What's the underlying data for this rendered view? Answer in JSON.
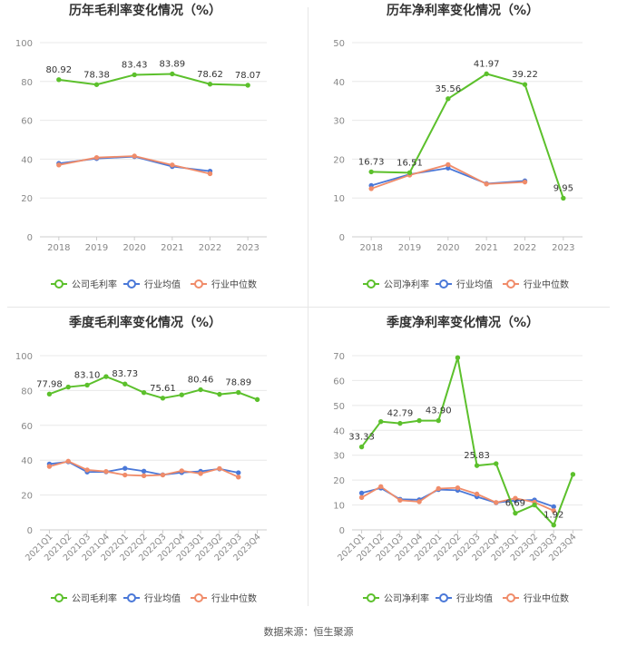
{
  "footer": {
    "source": "数据来源：恒生聚源"
  },
  "colors": {
    "company": "#5cc02c",
    "industry_avg": "#4a78d8",
    "industry_median": "#f08c6a",
    "axis_text": "#888888",
    "grid": "#e8e8e8",
    "title": "#333333"
  },
  "chart_data": [
    {
      "type": "line",
      "title": "历年毛利率变化情况（%）",
      "categories": [
        "2018",
        "2019",
        "2020",
        "2021",
        "2022",
        "2023"
      ],
      "ylim": [
        0,
        100
      ],
      "yticks": [
        0,
        20,
        40,
        60,
        80,
        100
      ],
      "grid": true,
      "legend": "bottom",
      "series": [
        {
          "name": "公司毛利率",
          "values": [
            80.92,
            78.38,
            83.43,
            83.89,
            78.62,
            78.07
          ]
        },
        {
          "name": "行业均值",
          "values": [
            37.8,
            40.3,
            41.3,
            36.2,
            33.8,
            null
          ]
        },
        {
          "name": "行业中位数",
          "values": [
            37.0,
            40.8,
            41.6,
            37.0,
            32.5,
            null
          ]
        }
      ],
      "data_labels": [
        "80.92",
        "78.38",
        "83.43",
        "83.89",
        "78.62",
        "78.07"
      ]
    },
    {
      "type": "line",
      "title": "历年净利率变化情况（%）",
      "categories": [
        "2018",
        "2019",
        "2020",
        "2021",
        "2022",
        "2023"
      ],
      "ylim": [
        0,
        50
      ],
      "yticks": [
        0,
        10,
        20,
        30,
        40,
        50
      ],
      "grid": true,
      "legend": "bottom",
      "series": [
        {
          "name": "公司净利率",
          "values": [
            16.73,
            16.51,
            35.56,
            41.97,
            39.22,
            9.95
          ]
        },
        {
          "name": "行业均值",
          "values": [
            13.2,
            16.1,
            17.7,
            13.7,
            14.4,
            null
          ]
        },
        {
          "name": "行业中位数",
          "values": [
            12.4,
            15.9,
            18.6,
            13.6,
            14.1,
            null
          ]
        }
      ],
      "data_labels": [
        "16.73",
        "16.51",
        "35.56",
        "41.97",
        "39.22",
        "9.95"
      ]
    },
    {
      "type": "line",
      "title": "季度毛利率变化情况（%）",
      "categories": [
        "2021Q1",
        "2021Q2",
        "2021Q3",
        "2021Q4",
        "2022Q1",
        "2022Q2",
        "2022Q3",
        "2022Q4",
        "2023Q1",
        "2023Q2",
        "2023Q3",
        "2023Q4"
      ],
      "ylim": [
        0,
        100
      ],
      "yticks": [
        0,
        20,
        40,
        60,
        80,
        100
      ],
      "grid": true,
      "legend": "bottom",
      "series": [
        {
          "name": "公司毛利率",
          "values": [
            77.98,
            82.0,
            83.1,
            88.0,
            83.73,
            78.8,
            75.61,
            77.5,
            80.46,
            77.8,
            78.89,
            74.8
          ]
        },
        {
          "name": "行业均值",
          "values": [
            37.8,
            39.1,
            33.2,
            33.3,
            35.3,
            33.7,
            31.6,
            32.9,
            33.6,
            35.0,
            32.8,
            null
          ]
        },
        {
          "name": "行业中位数",
          "values": [
            36.4,
            39.4,
            34.4,
            33.5,
            31.5,
            31.1,
            31.5,
            33.9,
            32.3,
            35.2,
            30.3,
            null
          ]
        }
      ],
      "data_labels": [
        "77.98",
        "",
        "83.10",
        "",
        "83.73",
        "",
        "75.61",
        "",
        "80.46",
        "",
        "78.89",
        ""
      ]
    },
    {
      "type": "line",
      "title": "季度净利率变化情况（%）",
      "categories": [
        "2021Q1",
        "2021Q2",
        "2021Q3",
        "2021Q4",
        "2022Q1",
        "2022Q2",
        "2022Q3",
        "2022Q4",
        "2023Q1",
        "2023Q2",
        "2023Q3",
        "2023Q4"
      ],
      "ylim": [
        0,
        70
      ],
      "yticks": [
        0,
        10,
        20,
        30,
        40,
        50,
        60,
        70
      ],
      "grid": true,
      "legend": "bottom",
      "series": [
        {
          "name": "公司净利率",
          "values": [
            33.33,
            43.5,
            42.79,
            43.9,
            43.9,
            69.2,
            25.83,
            26.6,
            6.69,
            10.0,
            1.92,
            22.3
          ]
        },
        {
          "name": "行业均值",
          "values": [
            14.8,
            16.8,
            12.3,
            12.1,
            16.2,
            15.9,
            13.3,
            10.9,
            11.8,
            12.0,
            9.3,
            null
          ]
        },
        {
          "name": "行业中位数",
          "values": [
            13.0,
            17.4,
            11.9,
            11.3,
            16.6,
            16.9,
            14.4,
            11.0,
            12.7,
            11.1,
            7.7,
            null
          ]
        }
      ],
      "data_labels": [
        "33.33",
        "",
        "42.79",
        "",
        "43.90",
        "",
        "25.83",
        "",
        "6.69",
        "",
        "1.92",
        ""
      ]
    }
  ]
}
